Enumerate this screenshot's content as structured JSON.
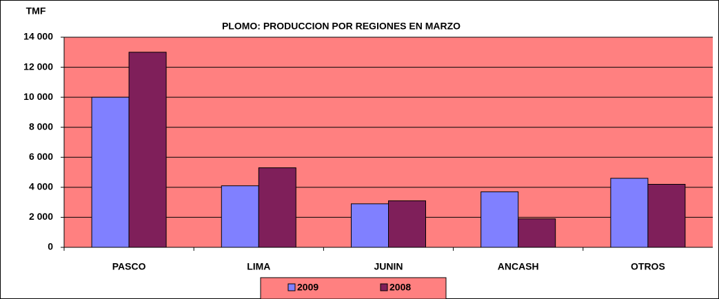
{
  "chart_data": {
    "type": "bar",
    "title": "PLOMO: PRODUCCION POR REGIONES EN MARZO",
    "y_label": "TMF",
    "categories": [
      "PASCO",
      "LIMA",
      "JUNIN",
      "ANCASH",
      "OTROS"
    ],
    "series": [
      {
        "name": "2009",
        "color": "#8080ff",
        "values": [
          10000,
          4100,
          2900,
          3700,
          4600
        ]
      },
      {
        "name": "2008",
        "color": "#7f1f5a",
        "values": [
          13000,
          5300,
          3100,
          1900,
          4200
        ]
      }
    ],
    "ylim": [
      0,
      14000
    ],
    "yticks": [
      0,
      {
        "value": 2000,
        "label": "2 000"
      },
      {
        "value": 4000,
        "label": "4 000"
      },
      {
        "value": 6000,
        "label": "6 000"
      },
      {
        "value": 8000,
        "label": "8 000"
      },
      {
        "value": 10000,
        "label": "10 000"
      },
      {
        "value": 12000,
        "label": "12 000"
      },
      {
        "value": 14000,
        "label": "14 000"
      }
    ],
    "grid": true,
    "plot_background": "#ff8080",
    "legend": "bottom"
  }
}
